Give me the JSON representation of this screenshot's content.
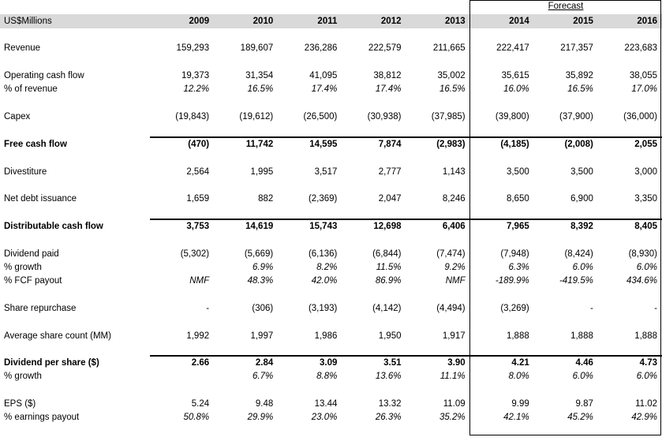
{
  "colors": {
    "header_band_bg": "#d9d9d9",
    "border": "#000000",
    "text": "#000000",
    "background": "#ffffff"
  },
  "table": {
    "unit_label": "US$Millions",
    "forecast_label": "Forecast",
    "years": [
      "2009",
      "2010",
      "2011",
      "2012",
      "2013",
      "2014",
      "2015",
      "2016"
    ],
    "forecast_years": [
      "2014",
      "2015",
      "2016"
    ],
    "rows": [
      {
        "id": "revenue",
        "label": "Revenue",
        "bold": false,
        "italic": false,
        "topline": false,
        "gap_before": 17,
        "values": [
          "159,293",
          "189,607",
          "236,286",
          "222,579",
          "211,665",
          "222,417",
          "217,357",
          "223,683"
        ]
      },
      {
        "id": "operating-cash-flow",
        "label": "Operating cash flow",
        "bold": false,
        "italic": false,
        "topline": false,
        "gap_before": 18,
        "values": [
          "19,373",
          "31,354",
          "41,095",
          "38,812",
          "35,002",
          "35,615",
          "35,892",
          "38,055"
        ]
      },
      {
        "id": "pct-of-revenue",
        "label": "% of revenue",
        "bold": false,
        "italic": true,
        "topline": false,
        "gap_before": 0,
        "values": [
          "12.2%",
          "16.5%",
          "17.4%",
          "17.4%",
          "16.5%",
          "16.0%",
          "16.5%",
          "17.0%"
        ]
      },
      {
        "id": "capex",
        "label": "Capex",
        "bold": false,
        "italic": false,
        "topline": false,
        "gap_before": 18,
        "values": [
          "(19,843)",
          "(19,612)",
          "(26,500)",
          "(30,938)",
          "(37,985)",
          "(39,800)",
          "(37,900)",
          "(36,000)"
        ]
      },
      {
        "id": "free-cash-flow",
        "label": "Free cash flow",
        "bold": true,
        "italic": false,
        "topline": true,
        "gap_before": 18,
        "values": [
          "(470)",
          "11,742",
          "14,595",
          "7,874",
          "(2,983)",
          "(4,185)",
          "(2,008)",
          "2,055"
        ]
      },
      {
        "id": "divestiture",
        "label": "Divestiture",
        "bold": false,
        "italic": false,
        "topline": false,
        "gap_before": 18,
        "values": [
          "2,564",
          "1,995",
          "3,517",
          "2,777",
          "1,143",
          "3,500",
          "3,500",
          "3,000"
        ]
      },
      {
        "id": "net-debt-issuance",
        "label": "Net debt issuance",
        "bold": false,
        "italic": false,
        "topline": false,
        "gap_before": 17,
        "values": [
          "1,659",
          "882",
          "(2,369)",
          "2,047",
          "8,246",
          "8,650",
          "6,900",
          "3,350"
        ]
      },
      {
        "id": "distributable-cash-flow",
        "label": "Distributable cash flow",
        "bold": true,
        "italic": false,
        "topline": true,
        "gap_before": 18,
        "values": [
          "3,753",
          "14,619",
          "15,743",
          "12,698",
          "6,406",
          "7,965",
          "8,392",
          "8,405"
        ]
      },
      {
        "id": "dividend-paid",
        "label": "Dividend paid",
        "bold": false,
        "italic": false,
        "topline": false,
        "gap_before": 18,
        "values": [
          "(5,302)",
          "(5,669)",
          "(6,136)",
          "(6,844)",
          "(7,474)",
          "(7,948)",
          "(8,424)",
          "(8,930)"
        ]
      },
      {
        "id": "dividend-pct-growth",
        "label": "% growth",
        "bold": false,
        "italic": true,
        "topline": false,
        "gap_before": 0,
        "values": [
          "",
          "6.9%",
          "8.2%",
          "11.5%",
          "9.2%",
          "6.3%",
          "6.0%",
          "6.0%"
        ]
      },
      {
        "id": "pct-fcf-payout",
        "label": "% FCF payout",
        "bold": false,
        "italic": true,
        "topline": false,
        "gap_before": 0,
        "values": [
          "NMF",
          "48.3%",
          "42.0%",
          "86.9%",
          "NMF",
          "-189.9%",
          "-419.5%",
          "434.6%"
        ]
      },
      {
        "id": "share-repurchase",
        "label": "Share repurchase",
        "bold": false,
        "italic": false,
        "topline": false,
        "gap_before": 18,
        "values": [
          "-",
          "(306)",
          "(3,193)",
          "(4,142)",
          "(4,494)",
          "(3,269)",
          "-",
          "-"
        ]
      },
      {
        "id": "average-share-count",
        "label": "Average share count (MM)",
        "bold": false,
        "italic": false,
        "topline": false,
        "gap_before": 18,
        "values": [
          "1,992",
          "1,997",
          "1,986",
          "1,950",
          "1,917",
          "1,888",
          "1,888",
          "1,888"
        ]
      },
      {
        "id": "dividend-per-share",
        "label": "Dividend per share ($)",
        "bold": true,
        "italic": false,
        "topline": true,
        "gap_before": 17,
        "values": [
          "2.66",
          "2.84",
          "3.09",
          "3.51",
          "3.90",
          "4.21",
          "4.46",
          "4.73"
        ]
      },
      {
        "id": "dps-pct-growth",
        "label": "% growth",
        "bold": false,
        "italic": true,
        "topline": false,
        "gap_before": 0,
        "values": [
          "",
          "6.7%",
          "8.8%",
          "13.6%",
          "11.1%",
          "8.0%",
          "6.0%",
          "6.0%"
        ]
      },
      {
        "id": "eps",
        "label": "EPS ($)",
        "bold": false,
        "italic": false,
        "topline": false,
        "gap_before": 18,
        "values": [
          "5.24",
          "9.48",
          "13.44",
          "13.32",
          "11.09",
          "9.99",
          "9.87",
          "11.02"
        ]
      },
      {
        "id": "pct-earnings-payout",
        "label": "% earnings payout",
        "bold": false,
        "italic": true,
        "topline": false,
        "gap_before": 0,
        "values": [
          "50.8%",
          "29.9%",
          "23.0%",
          "26.3%",
          "35.2%",
          "42.1%",
          "45.2%",
          "42.9%"
        ]
      }
    ]
  }
}
